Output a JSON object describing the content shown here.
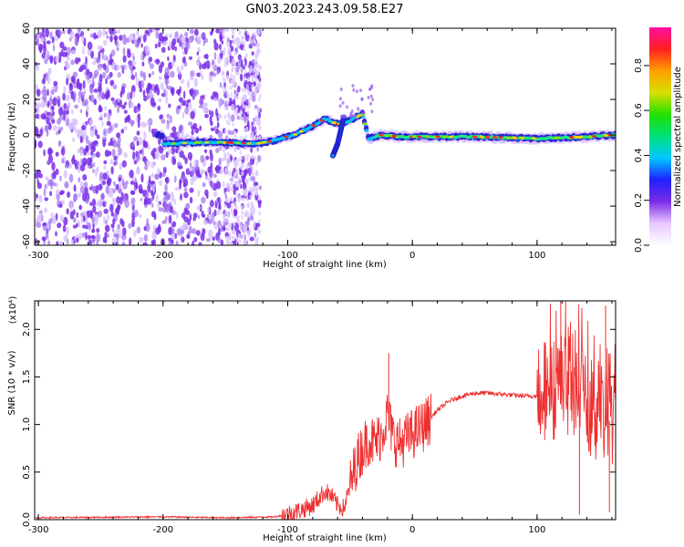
{
  "figure_title": "GN03.2023.243.09.58.E27",
  "chart_data": [
    {
      "type": "heatmap",
      "title": "GN03.2023.243.09.58.E27",
      "xlabel": "Height of straight line (km)",
      "ylabel": "Frequency (Hz)",
      "xlim": [
        -303,
        163
      ],
      "ylim": [
        -62,
        60
      ],
      "x_ticks": [
        -300,
        -200,
        -100,
        0,
        100
      ],
      "y_ticks": [
        -60,
        -40,
        -20,
        0,
        20,
        40,
        60
      ],
      "colorbar": {
        "label": "Normalized spectral amplitude",
        "range": [
          0,
          0.97
        ],
        "ticks": [
          0.0,
          0.2,
          0.4,
          0.6,
          0.8
        ],
        "colors": [
          "#ffffff",
          "#e8c8ff",
          "#7b2ce6",
          "#2020ff",
          "#00c8ff",
          "#00e07a",
          "#22e000",
          "#d8e000",
          "#ffa000",
          "#ff2020",
          "#ff10a0"
        ]
      },
      "noise_region_x": [
        -303,
        -122
      ],
      "ridge": [
        {
          "x": -200,
          "y": -5
        },
        {
          "x": -160,
          "y": -4
        },
        {
          "x": -125,
          "y": -5
        },
        {
          "x": -110,
          "y": -3
        },
        {
          "x": -95,
          "y": 0
        },
        {
          "x": -80,
          "y": 5
        },
        {
          "x": -70,
          "y": 9
        },
        {
          "x": -60,
          "y": 6
        },
        {
          "x": -50,
          "y": 8
        },
        {
          "x": -40,
          "y": 12
        },
        {
          "x": -35,
          "y": -2
        },
        {
          "x": -25,
          "y": 0
        },
        {
          "x": -10,
          "y": -1
        },
        {
          "x": 0,
          "y": -1
        },
        {
          "x": 50,
          "y": -1
        },
        {
          "x": 100,
          "y": -2
        },
        {
          "x": 140,
          "y": -1
        },
        {
          "x": 163,
          "y": 0
        }
      ],
      "branch": [
        {
          "x": -55,
          "y": 10
        },
        {
          "x": -60,
          "y": -5
        },
        {
          "x": -64,
          "y": -12
        }
      ]
    },
    {
      "type": "line",
      "xlabel": "Height of straight line (km)",
      "ylabel": "SNR (10 * v/v)",
      "y_multiplier": "(x10⁴)",
      "xlim": [
        -303,
        163
      ],
      "ylim": [
        0,
        2.3
      ],
      "x_ticks": [
        -300,
        -200,
        -100,
        0,
        100
      ],
      "y_ticks": [
        0.0,
        0.5,
        1.0,
        1.5,
        2.0
      ],
      "color": "#ee3030",
      "series": [
        {
          "values": [
            {
              "x": -303,
              "y": 0.02
            },
            {
              "x": -200,
              "y": 0.03
            },
            {
              "x": -150,
              "y": 0.02
            },
            {
              "x": -110,
              "y": 0.03
            },
            {
              "x": -100,
              "y": 0.06
            },
            {
              "x": -90,
              "y": 0.1
            },
            {
              "x": -80,
              "y": 0.15
            },
            {
              "x": -70,
              "y": 0.3
            },
            {
              "x": -65,
              "y": 0.25
            },
            {
              "x": -60,
              "y": 0.15
            },
            {
              "x": -55,
              "y": 0.12
            },
            {
              "x": -50,
              "y": 0.35
            },
            {
              "x": -45,
              "y": 0.6
            },
            {
              "x": -40,
              "y": 0.75
            },
            {
              "x": -35,
              "y": 0.85
            },
            {
              "x": -30,
              "y": 0.8
            },
            {
              "x": -25,
              "y": 0.9
            },
            {
              "x": -20,
              "y": 1.1
            },
            {
              "x": -15,
              "y": 0.85
            },
            {
              "x": -10,
              "y": 0.8
            },
            {
              "x": 0,
              "y": 0.9
            },
            {
              "x": 10,
              "y": 1.0
            },
            {
              "x": 20,
              "y": 1.15
            },
            {
              "x": 30,
              "y": 1.25
            },
            {
              "x": 40,
              "y": 1.3
            },
            {
              "x": 50,
              "y": 1.33
            },
            {
              "x": 60,
              "y": 1.33
            },
            {
              "x": 70,
              "y": 1.32
            },
            {
              "x": 80,
              "y": 1.31
            },
            {
              "x": 90,
              "y": 1.3
            },
            {
              "x": 100,
              "y": 1.3
            },
            {
              "x": 110,
              "y": 1.35
            },
            {
              "x": 120,
              "y": 1.45
            },
            {
              "x": 130,
              "y": 1.4
            },
            {
              "x": 140,
              "y": 1.2
            },
            {
              "x": 150,
              "y": 1.1
            },
            {
              "x": 163,
              "y": 1.0
            }
          ]
        }
      ],
      "peaks": [
        {
          "x": -19,
          "y": 1.75
        },
        {
          "x": 119,
          "y": 2.3
        },
        {
          "x": 155,
          "y": 2.25
        },
        {
          "x": 158,
          "y": 0.08
        },
        {
          "x": 134,
          "y": 0.05
        }
      ]
    }
  ]
}
